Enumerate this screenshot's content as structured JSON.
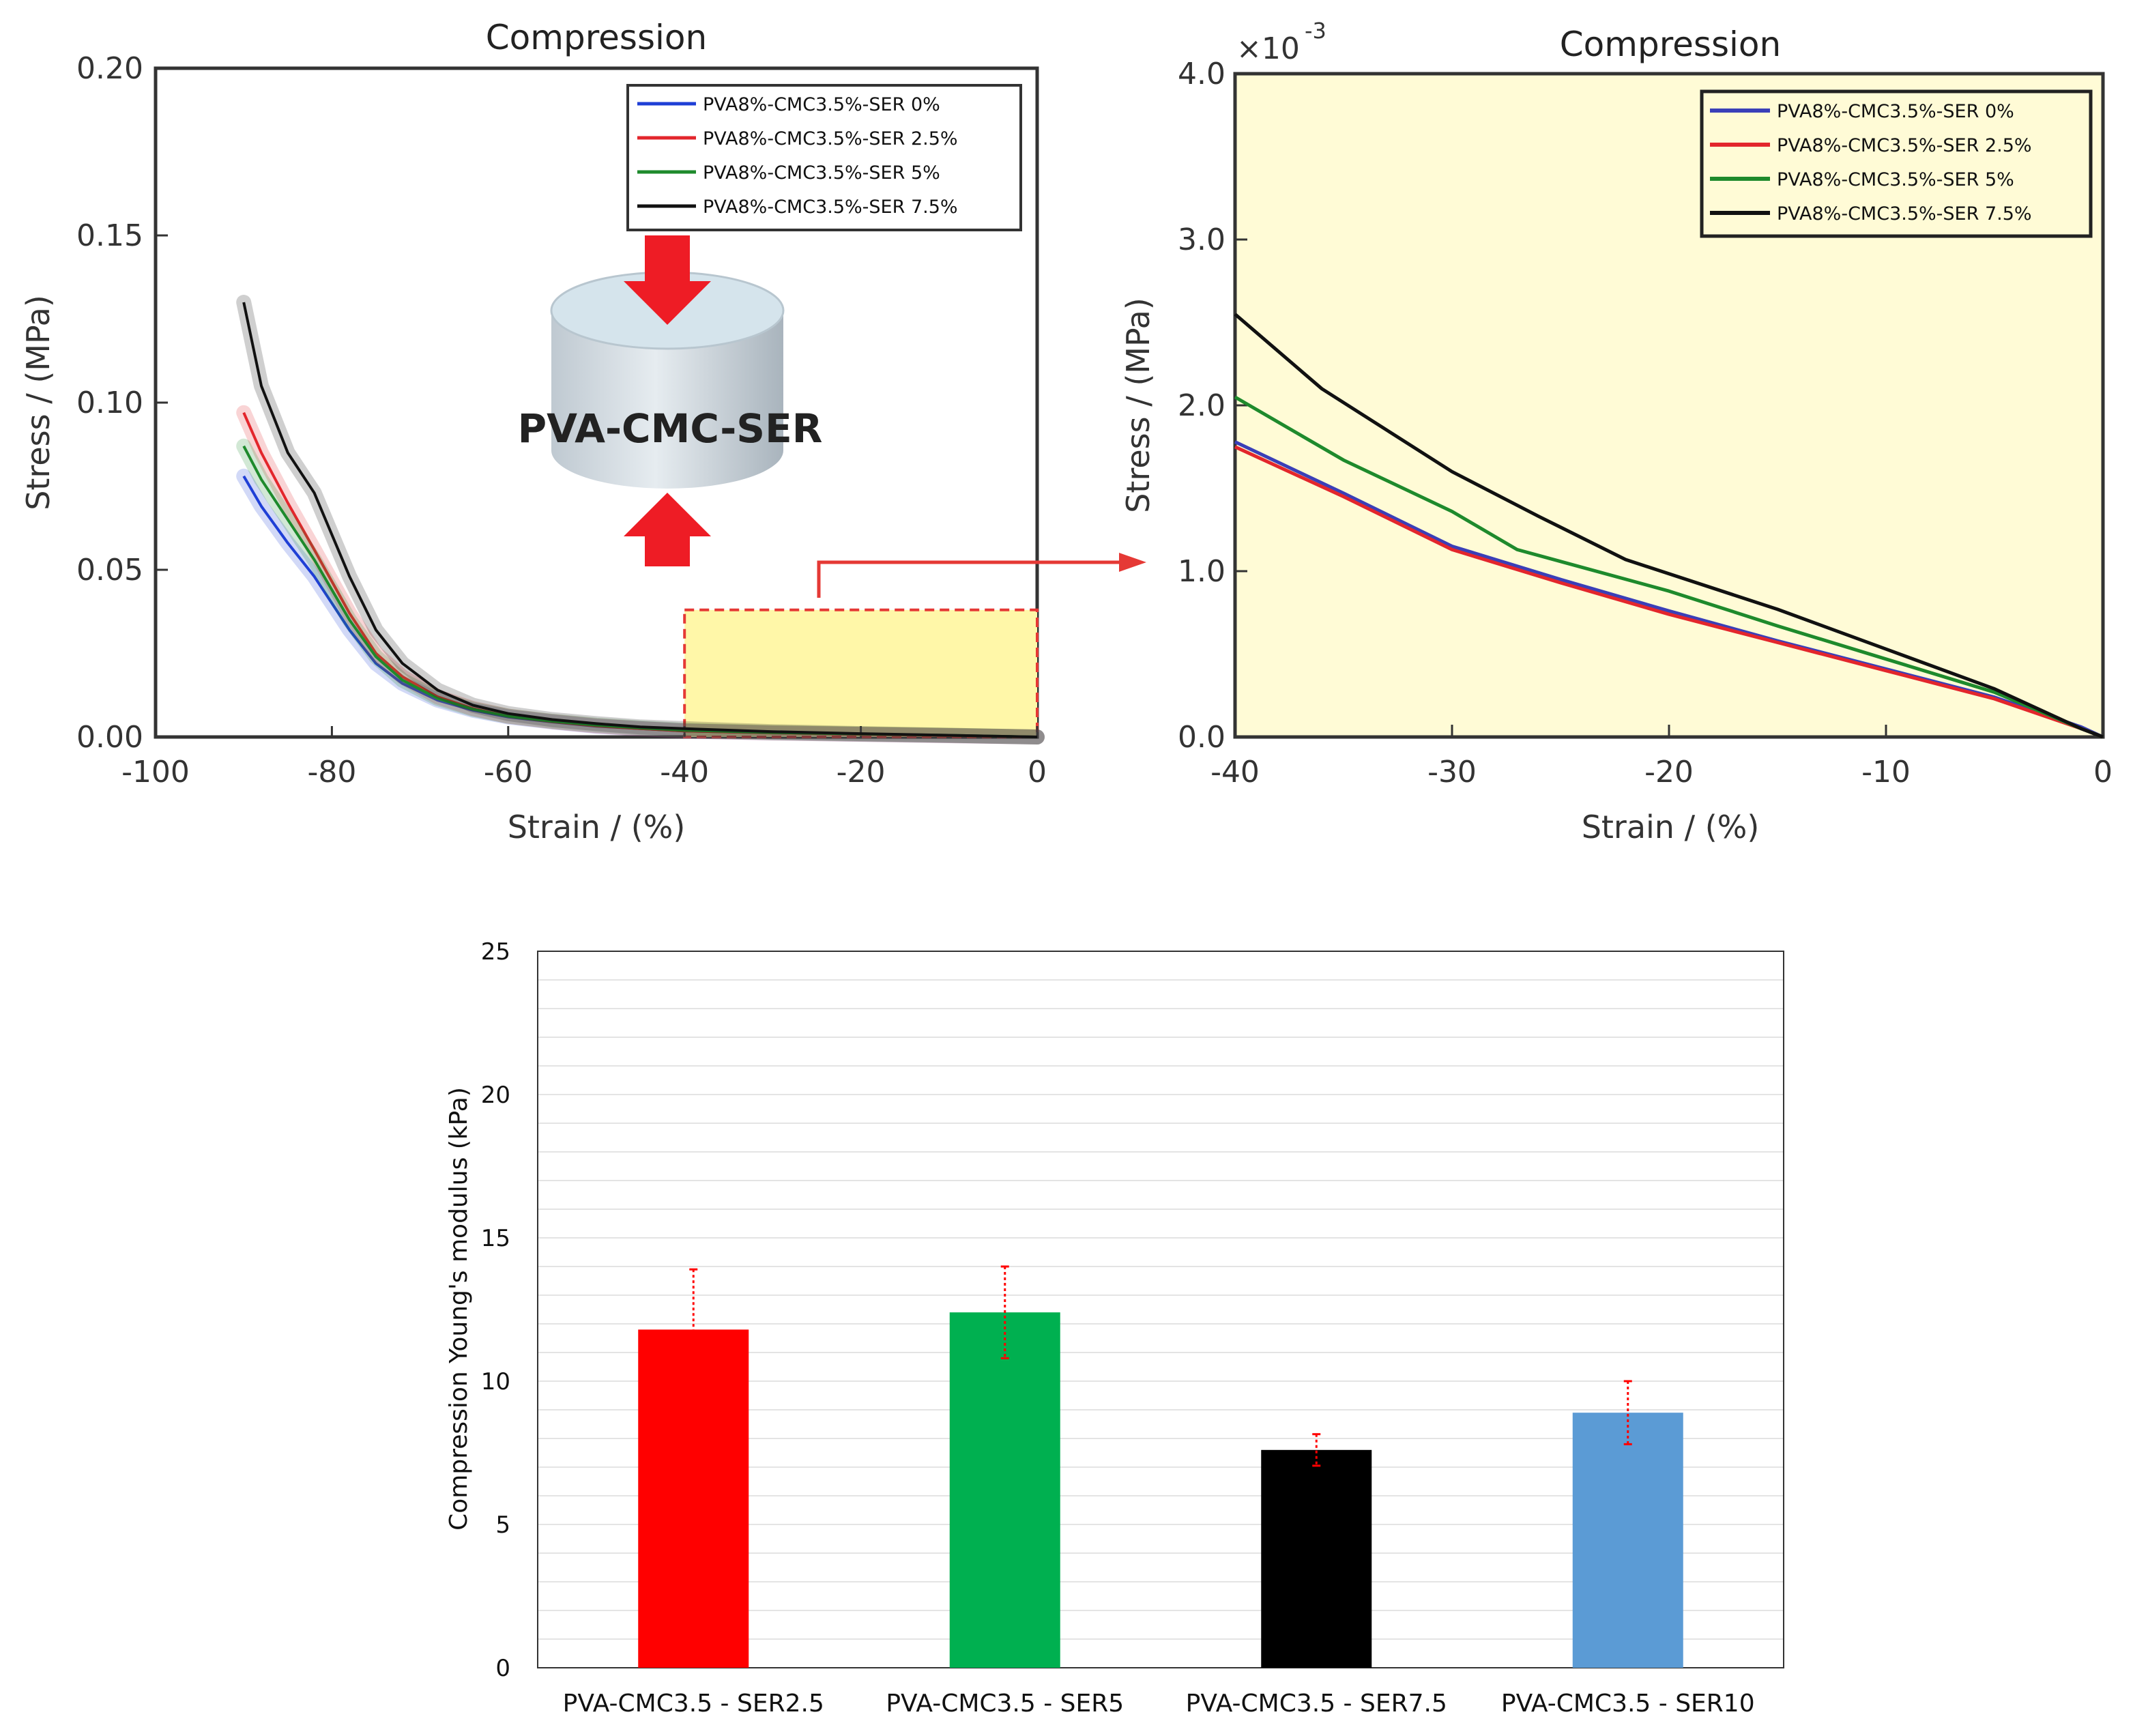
{
  "chart_data": [
    {
      "type": "line",
      "title": "Compression",
      "xlabel": "Strain / (%)",
      "ylabel": "Stress / (MPa)",
      "xlim": [
        -100,
        0
      ],
      "ylim": [
        0,
        0.2
      ],
      "xticks": [
        -100,
        -80,
        -60,
        -40,
        -20,
        0
      ],
      "xtick_labels": [
        "-100",
        "-80",
        "-60",
        "-40",
        "-20",
        "0"
      ],
      "yticks": [
        0,
        0.05,
        0.1,
        0.15,
        0.2
      ],
      "ytick_labels": [
        "0.00",
        "0.05",
        "0.10",
        "0.15",
        "0.20"
      ],
      "legend_position": "top-right",
      "inset_label": "PVA-CMC-SER",
      "highlight_region": {
        "x": [
          -40,
          0
        ],
        "y": [
          0,
          0.038
        ]
      },
      "series": [
        {
          "name": "PVA8%-CMC3.5%-SER 0%",
          "color": "#1f3fd6",
          "x": [
            -90,
            -88,
            -85,
            -82,
            -78,
            -75,
            -72,
            -68,
            -64,
            -60,
            -55,
            -50,
            -45,
            -40,
            -30,
            -20,
            -10,
            0
          ],
          "y": [
            0.078,
            0.069,
            0.058,
            0.048,
            0.032,
            0.022,
            0.016,
            0.011,
            0.008,
            0.006,
            0.0045,
            0.0032,
            0.0025,
            0.0018,
            0.0012,
            0.0008,
            0.0004,
            0
          ]
        },
        {
          "name": "PVA8%-CMC3.5%-SER 2.5%",
          "color": "#e3262c",
          "x": [
            -90,
            -88,
            -85,
            -82,
            -78,
            -75,
            -72,
            -68,
            -64,
            -60,
            -55,
            -50,
            -45,
            -40,
            -30,
            -20,
            -10,
            0
          ],
          "y": [
            0.097,
            0.085,
            0.07,
            0.056,
            0.037,
            0.025,
            0.018,
            0.012,
            0.0085,
            0.0062,
            0.0046,
            0.0033,
            0.0025,
            0.0018,
            0.0012,
            0.0008,
            0.0004,
            0
          ]
        },
        {
          "name": "PVA8%-CMC3.5%-SER 5%",
          "color": "#1e8a2c",
          "x": [
            -90,
            -88,
            -85,
            -82,
            -78,
            -75,
            -72,
            -68,
            -64,
            -60,
            -55,
            -50,
            -45,
            -40,
            -30,
            -20,
            -10,
            0
          ],
          "y": [
            0.087,
            0.077,
            0.065,
            0.053,
            0.035,
            0.024,
            0.017,
            0.0115,
            0.0083,
            0.0062,
            0.0047,
            0.0035,
            0.0027,
            0.002,
            0.0013,
            0.0009,
            0.0005,
            0
          ]
        },
        {
          "name": "PVA8%-CMC3.5%-SER 7.5%",
          "color": "#111111",
          "x": [
            -90,
            -88,
            -85,
            -82,
            -78,
            -75,
            -72,
            -68,
            -64,
            -60,
            -55,
            -50,
            -45,
            -40,
            -30,
            -20,
            -10,
            0
          ],
          "y": [
            0.13,
            0.105,
            0.085,
            0.073,
            0.048,
            0.032,
            0.022,
            0.014,
            0.0095,
            0.007,
            0.0052,
            0.004,
            0.003,
            0.0025,
            0.0016,
            0.001,
            0.0005,
            0
          ]
        }
      ]
    },
    {
      "type": "line",
      "title": "Compression",
      "xlabel": "Strain / (%)",
      "ylabel": "Stress / (MPa)",
      "y_multiplier": "×10",
      "y_exponent": "-3",
      "xlim": [
        -40,
        0
      ],
      "ylim": [
        0,
        4.0
      ],
      "xticks": [
        -40,
        -30,
        -20,
        -10,
        0
      ],
      "xtick_labels": [
        "-40",
        "-30",
        "-20",
        "-10",
        "0"
      ],
      "yticks": [
        0,
        1,
        2,
        3,
        4
      ],
      "ytick_labels": [
        "0.0",
        "1.0",
        "2.0",
        "3.0",
        "4.0"
      ],
      "legend_position": "top-right",
      "series": [
        {
          "name": "PVA8%-CMC3.5%-SER 0%",
          "color": "#3a3fb8",
          "x": [
            -40,
            -35,
            -30,
            -25,
            -20,
            -15,
            -10,
            -5,
            -1
          ],
          "y": [
            1.78,
            1.47,
            1.15,
            0.95,
            0.76,
            0.58,
            0.41,
            0.24,
            0.06
          ]
        },
        {
          "name": "PVA8%-CMC3.5%-SER 2.5%",
          "color": "#e3262c",
          "x": [
            -40,
            -35,
            -30,
            -25,
            -20,
            -15,
            -10,
            -5,
            -1
          ],
          "y": [
            1.75,
            1.45,
            1.13,
            0.93,
            0.74,
            0.57,
            0.4,
            0.23,
            0.05
          ]
        },
        {
          "name": "PVA8%-CMC3.5%-SER 5%",
          "color": "#1e8a2c",
          "x": [
            -40,
            -35,
            -30,
            -27,
            -20,
            -15,
            -10,
            -5,
            -1
          ],
          "y": [
            2.05,
            1.67,
            1.36,
            1.13,
            0.88,
            0.67,
            0.47,
            0.27,
            0.05
          ]
        },
        {
          "name": "PVA8%-CMC3.5%-SER 7.5%",
          "color": "#111111",
          "x": [
            -40,
            -36,
            -30,
            -26,
            -22,
            -15,
            -10,
            -5,
            -1
          ],
          "y": [
            2.55,
            2.1,
            1.6,
            1.33,
            1.07,
            0.77,
            0.53,
            0.29,
            0.05
          ]
        }
      ]
    },
    {
      "type": "bar",
      "title": "",
      "xlabel": "",
      "ylabel": "Compression Young's modulus (kPa)",
      "ylim": [
        0,
        25
      ],
      "yticks": [
        0,
        5,
        10,
        15,
        20,
        25
      ],
      "ytick_labels": [
        "0",
        "5",
        "10",
        "15",
        "20",
        "25"
      ],
      "categories": [
        "PVA-CMC3.5 - SER2.5",
        "PVA-CMC3.5 - SER5",
        "PVA-CMC3.5 - SER7.5",
        "PVA-CMC3.5 - SER10"
      ],
      "values": [
        11.8,
        12.4,
        7.6,
        8.9
      ],
      "errors": [
        2.1,
        1.6,
        0.55,
        1.1
      ],
      "colors": [
        "#ff0000",
        "#00b050",
        "#000000",
        "#5b9bd5"
      ],
      "error_color": "#ff0000"
    }
  ]
}
